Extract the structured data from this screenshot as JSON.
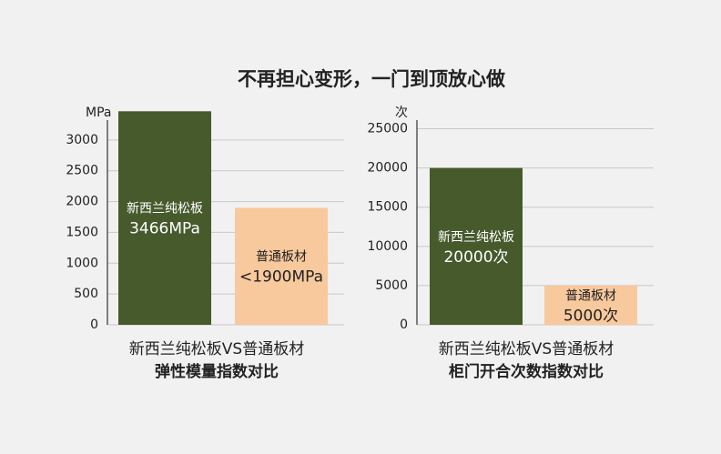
{
  "title": "不再担心变形，一门到顶放心做",
  "chart_data": [
    {
      "type": "bar",
      "ylabel": "MPa",
      "categories": [
        "新西兰纯松板",
        "普通板材"
      ],
      "values": [
        3466,
        1900
      ],
      "value_labels": [
        "3466MPa",
        "<1900MPa"
      ],
      "colors": [
        "#465a2c",
        "#f8c99d"
      ],
      "ylim": [
        0,
        3500
      ],
      "yticks": [
        0,
        500,
        1000,
        1500,
        2000,
        2500,
        3000
      ],
      "grid": true,
      "caption": [
        "新西兰纯松板VS普通板材",
        "弹性模量指数对比"
      ]
    },
    {
      "type": "bar",
      "ylabel": "次",
      "categories": [
        "新西兰纯松板",
        "普通板材"
      ],
      "values": [
        20000,
        5000
      ],
      "value_labels": [
        "20000次",
        "5000次"
      ],
      "colors": [
        "#465a2c",
        "#f8c99d"
      ],
      "ylim": [
        0,
        27500
      ],
      "yticks": [
        0,
        5000,
        10000,
        15000,
        20000,
        25000
      ],
      "grid": true,
      "caption": [
        "新西兰纯松板VS普通板材",
        "柜门开合次数指数对比"
      ]
    }
  ]
}
